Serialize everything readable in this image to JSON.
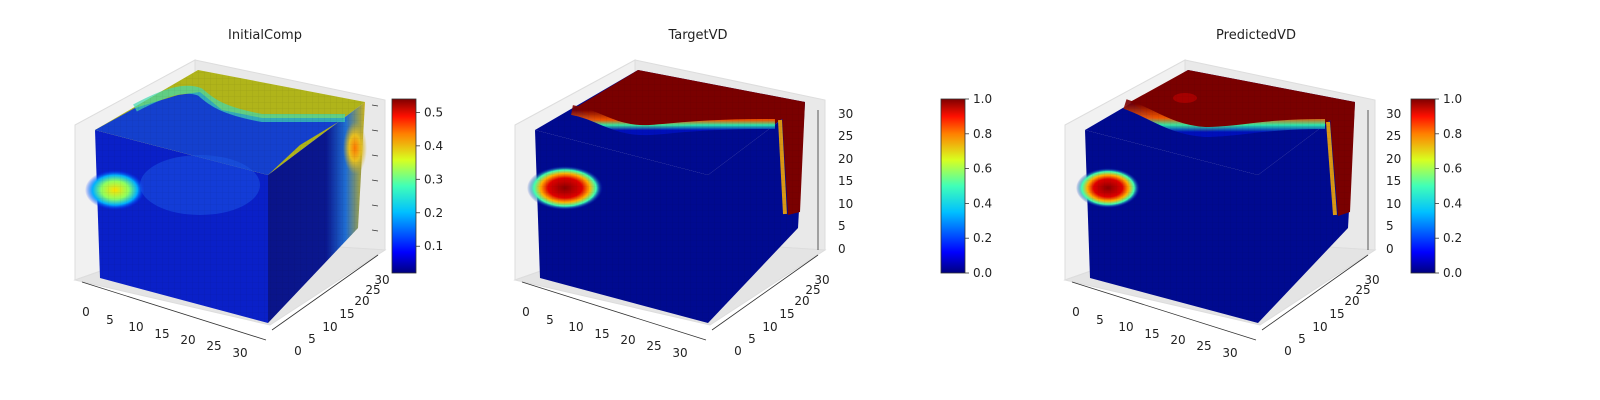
{
  "chart_data": [
    {
      "type": "heatmap",
      "title": "InitialComp",
      "x_ticks": [
        "0",
        "5",
        "10",
        "15",
        "20",
        "25",
        "30"
      ],
      "y_ticks": [
        "0",
        "5",
        "10",
        "15",
        "20",
        "25",
        "30"
      ],
      "z_ticks": [],
      "colormap": "jet",
      "colorbar": {
        "min": 0.02,
        "max": 0.54,
        "ticks": [
          "0.1",
          "0.2",
          "0.3",
          "0.4",
          "0.5"
        ]
      }
    },
    {
      "type": "heatmap",
      "title": "TargetVD",
      "x_ticks": [
        "0",
        "5",
        "10",
        "15",
        "20",
        "25",
        "30"
      ],
      "y_ticks": [
        "0",
        "5",
        "10",
        "15",
        "20",
        "25",
        "30"
      ],
      "z_ticks": [
        "0",
        "5",
        "10",
        "15",
        "20",
        "25",
        "30"
      ],
      "colormap": "jet",
      "colorbar": {
        "min": 0.0,
        "max": 1.0,
        "ticks": [
          "0.0",
          "0.2",
          "0.4",
          "0.6",
          "0.8",
          "1.0"
        ]
      }
    },
    {
      "type": "heatmap",
      "title": "PredictedVD",
      "x_ticks": [
        "0",
        "5",
        "10",
        "15",
        "20",
        "25",
        "30"
      ],
      "y_ticks": [
        "0",
        "5",
        "10",
        "15",
        "20",
        "25",
        "30"
      ],
      "z_ticks": [
        "0",
        "5",
        "10",
        "15",
        "20",
        "25",
        "30"
      ],
      "colormap": "jet",
      "colorbar": {
        "min": 0.0,
        "max": 1.0,
        "ticks": [
          "0.0",
          "0.2",
          "0.4",
          "0.6",
          "0.8",
          "1.0"
        ]
      }
    }
  ]
}
